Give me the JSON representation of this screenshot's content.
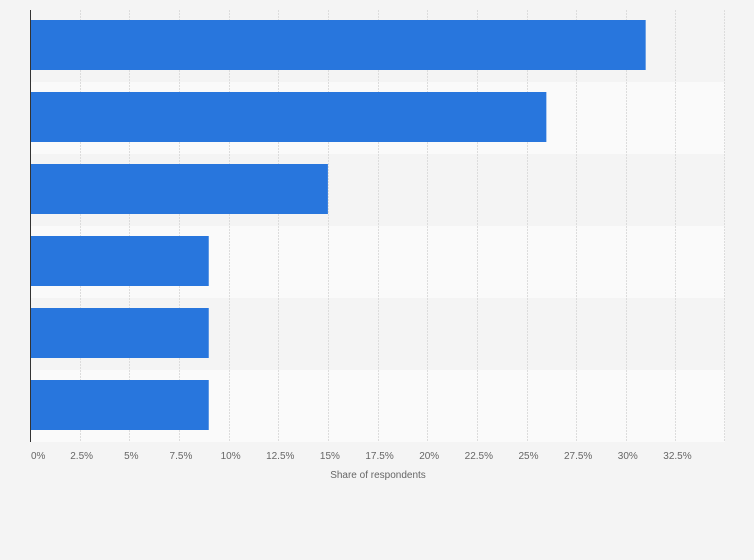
{
  "chart_data": {
    "type": "bar",
    "orientation": "horizontal",
    "categories": [
      "",
      "",
      "",
      "",
      "",
      ""
    ],
    "values": [
      31,
      26,
      15,
      9,
      9,
      9
    ],
    "title": "",
    "xlabel": "Share of respondents",
    "ylabel": "",
    "xlim": [
      0,
      35
    ],
    "x_ticks": [
      0,
      2.5,
      5,
      7.5,
      10,
      12.5,
      15,
      17.5,
      20,
      22.5,
      25,
      27.5,
      30,
      32.5
    ],
    "x_tick_labels": [
      "0%",
      "2.5%",
      "5%",
      "7.5%",
      "10%",
      "12.5%",
      "15%",
      "17.5%",
      "20%",
      "22.5%",
      "25%",
      "27.5%",
      "30%",
      "32.5%"
    ],
    "grid": true,
    "legend": "none",
    "colors": {
      "bar": "#2876dd",
      "background": "#f4f4f4",
      "band_light": "#fafafa",
      "band_dark": "#f4f4f4",
      "grid": "#dcdcdc",
      "axis": "#333333",
      "text": "#666666"
    }
  }
}
